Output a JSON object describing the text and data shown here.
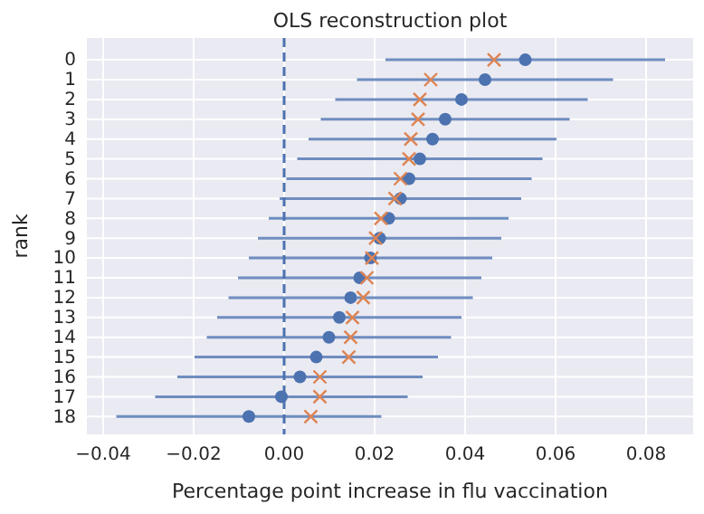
{
  "chart_data": {
    "type": "scatter",
    "title": "OLS reconstruction plot",
    "xlabel": "Percentage point increase in flu vaccination",
    "ylabel": "rank",
    "orientation": "horizontal",
    "categories": [
      "0",
      "1",
      "2",
      "3",
      "4",
      "5",
      "6",
      "7",
      "8",
      "9",
      "10",
      "11",
      "12",
      "13",
      "14",
      "15",
      "16",
      "17",
      "18"
    ],
    "series": [
      {
        "color": "#4c72b0",
        "marker": "circle",
        "values": [
          0.0533,
          0.0444,
          0.0392,
          0.0356,
          0.0328,
          0.03,
          0.0276,
          0.0257,
          0.0231,
          0.0211,
          0.0191,
          0.0167,
          0.0147,
          0.0122,
          0.0099,
          0.0071,
          0.0035,
          -0.0006,
          -0.0078
        ],
        "errors": [
          0.0309,
          0.0283,
          0.0279,
          0.0275,
          0.0274,
          0.0271,
          0.0271,
          0.0267,
          0.0265,
          0.0269,
          0.0269,
          0.0269,
          0.027,
          0.027,
          0.027,
          0.0269,
          0.0271,
          0.0279,
          0.0293
        ]
      },
      {
        "color": "#dd8452",
        "marker": "cross",
        "values": [
          0.0464,
          0.0324,
          0.03,
          0.0296,
          0.028,
          0.0276,
          0.0257,
          0.0245,
          0.0214,
          0.0202,
          0.0194,
          0.0183,
          0.0175,
          0.0151,
          0.0147,
          0.0143,
          0.0079,
          0.0079,
          0.0059
        ]
      }
    ],
    "xlim": [
      -0.0436,
      0.0904
    ],
    "xticks": [
      {
        "value": -0.04,
        "label": "−0.04"
      },
      {
        "value": -0.02,
        "label": "−0.02"
      },
      {
        "value": 0,
        "label": "0.00"
      },
      {
        "value": 0.02,
        "label": "0.02"
      },
      {
        "value": 0.04,
        "label": "0.04"
      },
      {
        "value": 0.06,
        "label": "0.06"
      },
      {
        "value": 0.08,
        "label": "0.08"
      }
    ],
    "ref_lines": [
      {
        "axis": "x",
        "value": 0,
        "color": "#4c72b0",
        "line_style": "dashed"
      }
    ],
    "grid": true
  }
}
